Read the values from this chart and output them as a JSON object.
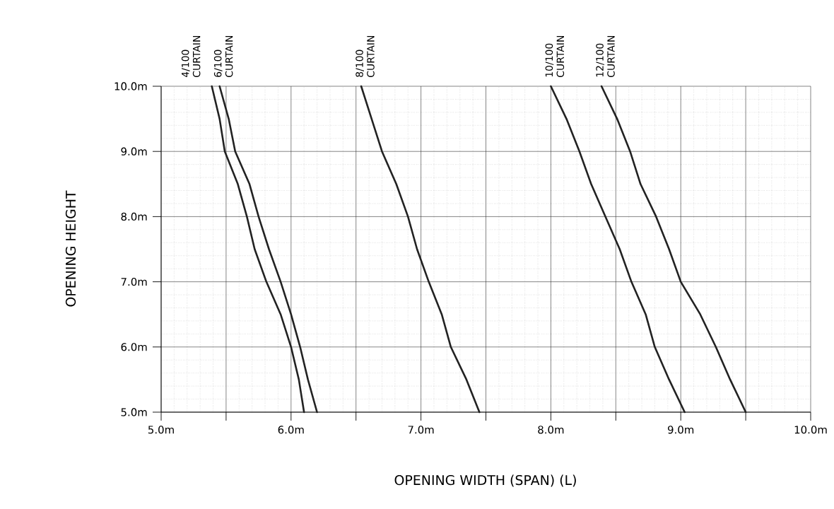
{
  "chart_data": {
    "type": "line",
    "xlabel": "OPENING WIDTH (SPAN) (L)",
    "ylabel": "OPENING HEIGHT",
    "xlim": [
      5,
      10
    ],
    "ylim": [
      5,
      10
    ],
    "xticks": [
      {
        "value": 5,
        "label": "5.0m"
      },
      {
        "value": 5.5,
        "label": null
      },
      {
        "value": 6,
        "label": "6.0m"
      },
      {
        "value": 6.5,
        "label": null
      },
      {
        "value": 7,
        "label": "7.0m"
      },
      {
        "value": 7.5,
        "label": null
      },
      {
        "value": 8,
        "label": "8.0m"
      },
      {
        "value": 8.5,
        "label": null
      },
      {
        "value": 9,
        "label": "9.0m"
      },
      {
        "value": 9.5,
        "label": null
      },
      {
        "value": 10,
        "label": "10.0m"
      }
    ],
    "yticks": [
      {
        "value": 5,
        "label": "5.0m"
      },
      {
        "value": 6,
        "label": "6.0m"
      },
      {
        "value": 7,
        "label": "7.0m"
      },
      {
        "value": 8,
        "label": "8.0m"
      },
      {
        "value": 9,
        "label": "9.0m"
      },
      {
        "value": 10,
        "label": "10.0m"
      }
    ],
    "grid": true,
    "legend": false,
    "marker": "none",
    "line_style": "solid",
    "series": [
      {
        "name": "4/100 CURTAIN",
        "color": "#222222",
        "x": [
          5.39,
          5.45,
          5.49,
          5.59,
          5.66,
          5.72,
          5.81,
          5.92,
          6.0,
          6.06,
          6.1
        ],
        "values": [
          10,
          9.5,
          9,
          8.5,
          8,
          7.5,
          7,
          6.5,
          6,
          5.5,
          5
        ]
      },
      {
        "name": "6/100 CURTAIN",
        "color": "#222222",
        "x": [
          5.45,
          5.52,
          5.57,
          5.68,
          5.75,
          5.83,
          5.92,
          6.0,
          6.07,
          6.13,
          6.2
        ],
        "values": [
          10,
          9.5,
          9,
          8.5,
          8,
          7.5,
          7,
          6.5,
          6,
          5.5,
          5
        ]
      },
      {
        "name": "8/100 CURTAIN",
        "color": "#222222",
        "x": [
          6.54,
          6.62,
          6.7,
          6.81,
          6.9,
          6.97,
          7.06,
          7.16,
          7.23,
          7.35,
          7.45
        ],
        "values": [
          10,
          9.5,
          9,
          8.5,
          8,
          7.5,
          7,
          6.5,
          6,
          5.5,
          5
        ]
      },
      {
        "name": "10/100 CURTAIN",
        "color": "#222222",
        "x": [
          8.0,
          8.12,
          8.22,
          8.31,
          8.42,
          8.53,
          8.62,
          8.73,
          8.8,
          8.91,
          9.03
        ],
        "values": [
          10,
          9.5,
          9,
          8.5,
          8,
          7.5,
          7,
          6.5,
          6,
          5.5,
          5
        ]
      },
      {
        "name": "12/100 CURTAIN",
        "color": "#222222",
        "x": [
          8.39,
          8.51,
          8.61,
          8.69,
          8.81,
          8.91,
          9.0,
          9.15,
          9.27,
          9.38,
          9.5
        ],
        "values": [
          10,
          9.5,
          9,
          8.5,
          8,
          7.5,
          7,
          6.5,
          6,
          5.5,
          5
        ]
      }
    ]
  }
}
